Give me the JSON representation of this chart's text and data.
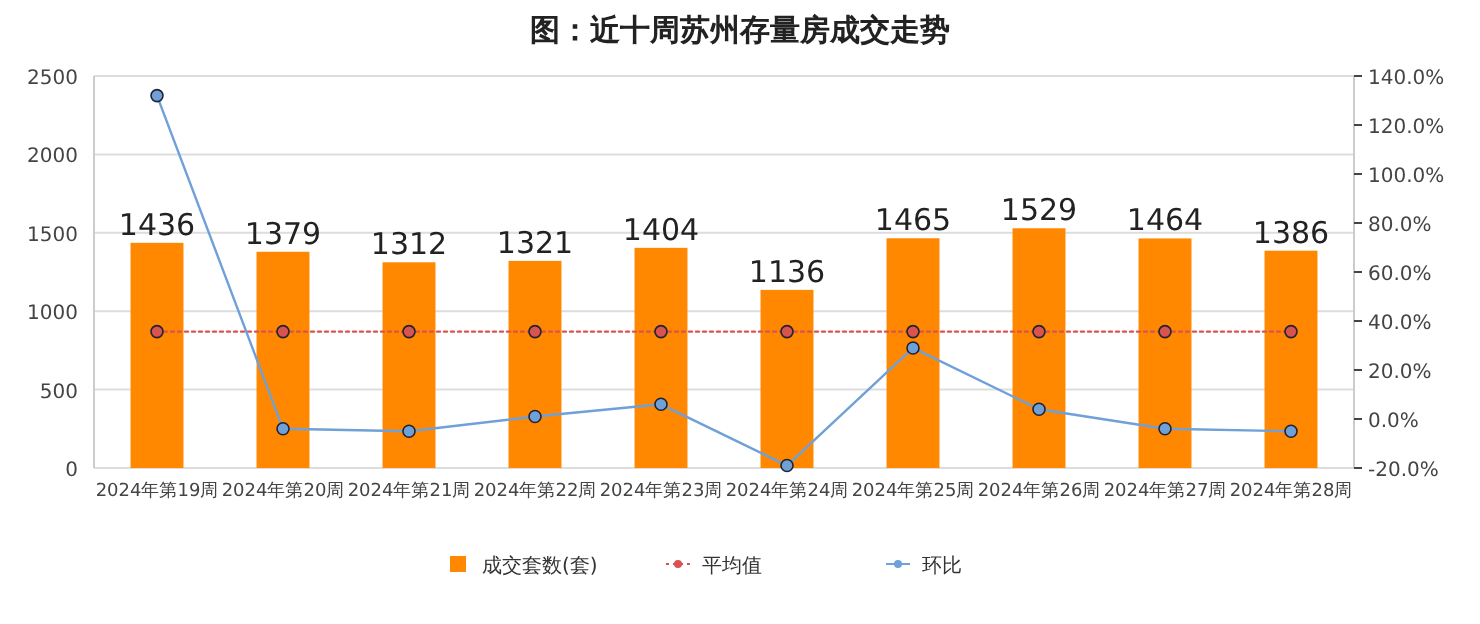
{
  "chart_data": {
    "type": "bar",
    "title": "图：近十周苏州存量房成交走势",
    "categories": [
      "2024年第19周",
      "2024年第20周",
      "2024年第21周",
      "2024年第22周",
      "2024年第23周",
      "2024年第24周",
      "2024年第25周",
      "2024年第26周",
      "2024年第27周",
      "2024年第28周"
    ],
    "series": [
      {
        "name": "成交套数(套)",
        "color": "#ff8800",
        "values": [
          1436,
          1379,
          1312,
          1321,
          1404,
          1136,
          1465,
          1529,
          1464,
          1386
        ],
        "data_labels": true
      },
      {
        "name": "平均值",
        "type": "line",
        "color": "#d9534f",
        "line_style": "dotted",
        "values": [
          870,
          870,
          870,
          870,
          870,
          870,
          870,
          870,
          870,
          870
        ]
      },
      {
        "name": "环比",
        "type": "line",
        "axis": "y2",
        "color": "#6fa0d8",
        "line_style": "solid",
        "values": [
          132,
          -4,
          -5,
          1,
          6,
          -19,
          29,
          4,
          -4,
          -5
        ]
      }
    ],
    "ylim": [
      0,
      2500
    ],
    "yticks": [
      0,
      500,
      1000,
      1500,
      2000,
      2500
    ],
    "y2lim": [
      -20,
      140
    ],
    "y2ticks": [
      {
        "value": -20,
        "label": "-20.0%"
      },
      {
        "value": 0,
        "label": "0.0%"
      },
      {
        "value": 20,
        "label": "20.0%"
      },
      {
        "value": 40,
        "label": "40.0%"
      },
      {
        "value": 60,
        "label": "60.0%"
      },
      {
        "value": 80,
        "label": "80.0%"
      },
      {
        "value": 100,
        "label": "100.0%"
      },
      {
        "value": 120,
        "label": "120.0%"
      },
      {
        "value": 140,
        "label": "140.0%"
      }
    ],
    "grid": "y",
    "legend": "bottom",
    "marker": "circle"
  }
}
